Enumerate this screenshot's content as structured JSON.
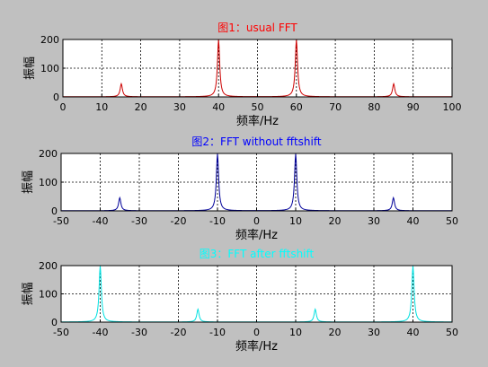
{
  "figure": {
    "background": "#c0c0c0"
  },
  "chart_data": [
    {
      "type": "line",
      "title": "图1：usual FFT",
      "title_color": "#ff0000",
      "xlabel": "频率/Hz",
      "ylabel": "振幅",
      "xlim": [
        0,
        100
      ],
      "ylim": [
        0,
        200
      ],
      "xticks": [
        "0",
        "10",
        "20",
        "30",
        "40",
        "50",
        "60",
        "70",
        "80",
        "90",
        "100"
      ],
      "yticks": [
        "0",
        "100",
        "200"
      ],
      "grid": true,
      "series": [
        {
          "color": "#cc0000",
          "peaks": [
            {
              "x": 15,
              "y": 45
            },
            {
              "x": 40,
              "y": 198
            },
            {
              "x": 60,
              "y": 198
            },
            {
              "x": 85,
              "y": 45
            }
          ]
        }
      ]
    },
    {
      "type": "line",
      "title": "图2：FFT without fftshift",
      "title_color": "#0000ff",
      "xlabel": "频率/Hz",
      "ylabel": "振幅",
      "xlim": [
        -50,
        50
      ],
      "ylim": [
        0,
        200
      ],
      "xticks": [
        "-50",
        "-40",
        "-30",
        "-20",
        "-10",
        "0",
        "10",
        "20",
        "30",
        "40",
        "50"
      ],
      "yticks": [
        "0",
        "100",
        "200"
      ],
      "grid": true,
      "series": [
        {
          "color": "#000099",
          "peaks": [
            {
              "x": -35,
              "y": 45
            },
            {
              "x": -10,
              "y": 198
            },
            {
              "x": 10,
              "y": 198
            },
            {
              "x": 35,
              "y": 45
            }
          ]
        }
      ]
    },
    {
      "type": "line",
      "title": "图3：FFT after fftshift",
      "title_color": "#00ffff",
      "xlabel": "频率/Hz",
      "ylabel": "振幅",
      "xlim": [
        -50,
        50
      ],
      "ylim": [
        0,
        200
      ],
      "xticks": [
        "-50",
        "-40",
        "-30",
        "-20",
        "-10",
        "0",
        "10",
        "20",
        "30",
        "40",
        "50"
      ],
      "yticks": [
        "0",
        "100",
        "200"
      ],
      "grid": true,
      "series": [
        {
          "color": "#00e0e0",
          "peaks": [
            {
              "x": -40,
              "y": 198
            },
            {
              "x": -15,
              "y": 45
            },
            {
              "x": 15,
              "y": 45
            },
            {
              "x": 40,
              "y": 198
            }
          ]
        }
      ]
    }
  ]
}
